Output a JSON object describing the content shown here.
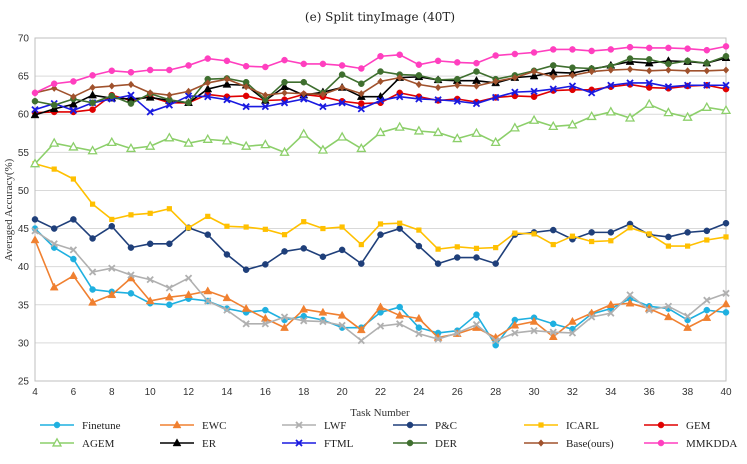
{
  "chart_data": {
    "type": "line",
    "title": "(e)  Split tinyImage  (40T)",
    "xlabel": "Task Number",
    "ylabel": "Averaged Accuracy(%)",
    "xlim": [
      4,
      40
    ],
    "ylim": [
      25,
      70
    ],
    "x_ticks": [
      4,
      6,
      8,
      10,
      12,
      14,
      16,
      18,
      20,
      22,
      24,
      26,
      28,
      30,
      32,
      34,
      36,
      38,
      40
    ],
    "y_ticks": [
      25,
      30,
      35,
      40,
      45,
      50,
      55,
      60,
      65,
      70
    ],
    "grid": "horizontal",
    "legend_position": "bottom",
    "x": [
      4,
      5,
      6,
      7,
      8,
      9,
      10,
      11,
      12,
      13,
      14,
      15,
      16,
      17,
      18,
      19,
      20,
      21,
      22,
      23,
      24,
      25,
      26,
      27,
      28,
      29,
      30,
      31,
      32,
      33,
      34,
      35,
      36,
      37,
      38,
      39,
      40
    ],
    "series": [
      {
        "name": "Finetune",
        "color": "#1fb0e0",
        "marker": "circle",
        "values": [
          45,
          42.5,
          41,
          37,
          36.7,
          36.5,
          35.2,
          35,
          35.8,
          35.5,
          34.5,
          34,
          34.3,
          33,
          33.5,
          33,
          32,
          32,
          34,
          34.7,
          32,
          31.3,
          31.6,
          33.7,
          29.7,
          33,
          33.3,
          32.5,
          31.8,
          33.8,
          34.5,
          35.8,
          34.8,
          34.5,
          33,
          34.3,
          34
        ]
      },
      {
        "name": "EWC",
        "color": "#f08030",
        "marker": "triangle",
        "values": [
          43.5,
          37.3,
          38.8,
          35.3,
          36.3,
          38.5,
          35.5,
          36,
          36.3,
          36.8,
          35.9,
          34.5,
          33.2,
          32,
          34.4,
          34,
          33.6,
          31.7,
          34.7,
          33.6,
          33.2,
          30.7,
          31.2,
          32,
          30.7,
          32.3,
          32.8,
          30.8,
          32.8,
          33.9,
          35,
          35.2,
          34.5,
          33.4,
          32,
          33.3,
          35.1
        ]
      },
      {
        "name": "LWF",
        "color": "#b0b0b0",
        "marker": "x",
        "values": [
          44.7,
          43,
          42.2,
          39.3,
          39.8,
          38.9,
          38.3,
          37.2,
          38.5,
          35.5,
          34.3,
          32.5,
          32.5,
          33.4,
          32.9,
          32.8,
          32.3,
          30.3,
          32.2,
          32.5,
          31.2,
          30.5,
          31.3,
          32.4,
          30.3,
          31.3,
          31.6,
          31.4,
          31.3,
          33.4,
          33.9,
          36.3,
          34.3,
          34.8,
          33.5,
          35.6,
          36.5
        ]
      },
      {
        "name": "P&C",
        "color": "#1f3f7a",
        "marker": "circle",
        "values": [
          46.2,
          45,
          46.2,
          43.7,
          45.3,
          42.5,
          43,
          43,
          45.1,
          44.2,
          41.6,
          39.6,
          40.3,
          42,
          42.4,
          41.3,
          42.2,
          40.4,
          44.2,
          45,
          42.7,
          40.4,
          41.2,
          41.2,
          40.4,
          44.2,
          44.5,
          44.8,
          43.6,
          44.5,
          44.5,
          45.6,
          44.2,
          43.9,
          44.5,
          44.7,
          45.7
        ]
      },
      {
        "name": "ICARL",
        "color": "#ffc000",
        "marker": "square",
        "values": [
          53.5,
          52.8,
          51.5,
          48.2,
          46.2,
          46.8,
          47,
          47.6,
          45.1,
          46.6,
          45.3,
          45.2,
          44.9,
          44.2,
          45.9,
          45,
          45.2,
          42.9,
          45.6,
          45.7,
          44.8,
          42.3,
          42.6,
          42.4,
          42.5,
          44.4,
          44.3,
          42.9,
          44,
          43.3,
          43.4,
          45.1,
          44.3,
          42.7,
          42.7,
          43.5,
          43.9
        ]
      },
      {
        "name": "GEM",
        "color": "#e00000",
        "marker": "circle",
        "values": [
          60.2,
          60.3,
          60.3,
          60.6,
          62.5,
          61.8,
          62.3,
          61.5,
          61.5,
          62.6,
          62.3,
          62.4,
          61.8,
          61.9,
          62.6,
          62.3,
          61.7,
          61.4,
          61.5,
          62.8,
          62.3,
          61.8,
          62,
          61.6,
          62.2,
          62.4,
          62.3,
          63.1,
          63.2,
          63.2,
          63.6,
          63.9,
          63.5,
          63.4,
          63.7,
          63.8,
          63.3
        ]
      },
      {
        "name": "AGEM",
        "color": "#8ccf6a",
        "marker": "triangle-open",
        "values": [
          53.5,
          56.2,
          55.7,
          55.2,
          56.3,
          55.5,
          55.8,
          56.9,
          56.2,
          56.7,
          56.5,
          55.8,
          56,
          55,
          57.4,
          55.3,
          57,
          55.5,
          57.6,
          58.3,
          57.8,
          57.6,
          56.8,
          57.5,
          56.3,
          58.2,
          59.2,
          58.4,
          58.6,
          59.7,
          60.3,
          59.5,
          61.3,
          60.2,
          59.6,
          60.9,
          60.5
        ]
      },
      {
        "name": "ER",
        "color": "#000000",
        "marker": "triangle",
        "values": [
          59.9,
          60.7,
          61.3,
          62.5,
          62.1,
          62,
          62.2,
          61.8,
          61.5,
          63.3,
          63.9,
          63.8,
          61.8,
          63.6,
          62.5,
          62.9,
          63.5,
          62.3,
          62.3,
          64.8,
          64.9,
          64.5,
          64.4,
          64.4,
          64.1,
          64.8,
          65,
          65.5,
          65.4,
          65.9,
          66.4,
          66.9,
          66.7,
          67,
          66.9,
          66.7,
          67.4
        ]
      },
      {
        "name": "FTML",
        "color": "#1a1ae0",
        "marker": "x",
        "values": [
          60.6,
          61.4,
          60.5,
          61.5,
          62,
          62.5,
          60.3,
          61.2,
          62.4,
          62.3,
          61.9,
          61,
          61,
          61.5,
          62,
          61,
          61.5,
          60.7,
          61.8,
          62.3,
          62,
          61.9,
          61.7,
          61.4,
          62.2,
          62.9,
          63,
          63.3,
          63.7,
          62.8,
          63.8,
          64.1,
          64.1,
          63.6,
          63.8,
          63.8,
          63.8
        ]
      },
      {
        "name": "DER",
        "color": "#3f6f2f",
        "marker": "circle",
        "values": [
          61.7,
          61.2,
          62,
          61.5,
          62.4,
          61.4,
          62.7,
          61.9,
          61.5,
          64.6,
          64.7,
          64.2,
          61.9,
          64.2,
          64.2,
          62.8,
          65.2,
          64,
          65.6,
          65.2,
          65.1,
          64.5,
          64.6,
          65.6,
          64.6,
          65.1,
          65.7,
          66.4,
          66.1,
          66,
          66.3,
          67.3,
          67.2,
          66.6,
          67,
          66.7,
          67.6
        ]
      },
      {
        "name": "Base(ours)",
        "color": "#a0522d",
        "marker": "diamond",
        "values": [
          62.8,
          63.4,
          62.3,
          63.5,
          63.7,
          63.9,
          62.8,
          62.5,
          63,
          64.1,
          64.6,
          63.6,
          62.5,
          62.8,
          62.7,
          62.6,
          63.5,
          62.7,
          64.3,
          64.8,
          63.9,
          63.5,
          63.8,
          63.7,
          64.3,
          64.8,
          65.6,
          64.9,
          65.1,
          65.6,
          65.8,
          65.9,
          65.7,
          65.8,
          65.7,
          65.7,
          65.8
        ]
      },
      {
        "name": "MMKDDA",
        "color": "#ff3fbf",
        "marker": "circle",
        "values": [
          62.8,
          64,
          64.3,
          65.1,
          65.7,
          65.5,
          65.8,
          65.8,
          66.4,
          67.3,
          67,
          66.3,
          66.2,
          67.1,
          66.6,
          66.6,
          66.4,
          66,
          67.6,
          67.8,
          66.5,
          67,
          66.8,
          66.7,
          67.7,
          67.9,
          68.1,
          68.5,
          68.5,
          68.3,
          68.5,
          68.8,
          68.7,
          68.7,
          68.6,
          68.4,
          68.9
        ]
      }
    ]
  }
}
